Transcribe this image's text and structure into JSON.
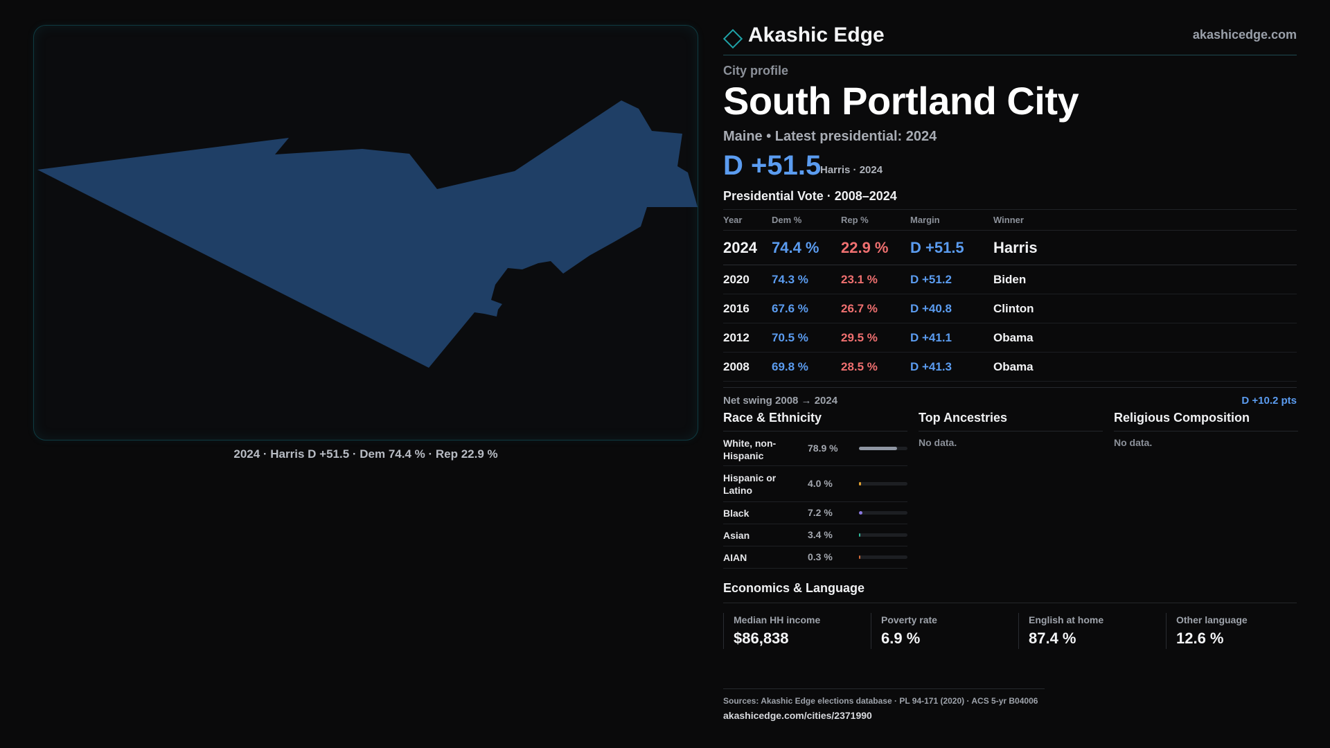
{
  "brand": {
    "name": "Akashic Edge",
    "url": "akashicedge.com",
    "accent": "#1fa3a8"
  },
  "map": {
    "fill_color": "#1f3f66",
    "caption": "2024 · Harris D +51.5 · Dem 74.4 % · Rep 22.9 %"
  },
  "profile": {
    "kicker": "City profile",
    "title": "South Portland City",
    "subtitle": "Maine • Latest presidential: 2024",
    "headline_margin": "D +51.5",
    "headline_note": "Harris · 2024"
  },
  "presidential": {
    "section_title": "Presidential Vote · 2008–2024",
    "headers": [
      "Year",
      "Dem %",
      "Rep %",
      "Margin",
      "Winner"
    ],
    "rows": [
      {
        "year": "2024",
        "dem": "74.4 %",
        "rep": "22.9 %",
        "margin": "D +51.5",
        "winner": "Harris"
      },
      {
        "year": "2020",
        "dem": "74.3 %",
        "rep": "23.1 %",
        "margin": "D +51.2",
        "winner": "Biden"
      },
      {
        "year": "2016",
        "dem": "67.6 %",
        "rep": "26.7 %",
        "margin": "D +40.8",
        "winner": "Clinton"
      },
      {
        "year": "2012",
        "dem": "70.5 %",
        "rep": "29.5 %",
        "margin": "D +41.1",
        "winner": "Obama"
      },
      {
        "year": "2008",
        "dem": "69.8 %",
        "rep": "28.5 %",
        "margin": "D +41.3",
        "winner": "Obama"
      }
    ],
    "swing_label": "Net swing 2008 → 2024",
    "swing_value": "D +10.2 pts"
  },
  "race": {
    "title": "Race & Ethnicity",
    "rows": [
      {
        "name": "White, non-Hispanic",
        "pct_label": "78.9 %",
        "pct": 78.9,
        "color": "#8f96a3"
      },
      {
        "name": "Hispanic or Latino",
        "pct_label": "4.0 %",
        "pct": 4.0,
        "color": "#e0a030"
      },
      {
        "name": "Black",
        "pct_label": "7.2 %",
        "pct": 7.2,
        "color": "#8a78e0"
      },
      {
        "name": "Asian",
        "pct_label": "3.4 %",
        "pct": 3.4,
        "color": "#2fb89a"
      },
      {
        "name": "AIAN",
        "pct_label": "0.3 %",
        "pct": 0.3,
        "color": "#d06a3a"
      }
    ]
  },
  "ancestries": {
    "title": "Top Ancestries",
    "empty": "No data."
  },
  "religion": {
    "title": "Religious Composition",
    "empty": "No data."
  },
  "economics": {
    "title": "Economics & Language",
    "cells": [
      {
        "label": "Median HH income",
        "value": "$86,838"
      },
      {
        "label": "Poverty rate",
        "value": "6.9 %"
      },
      {
        "label": "English at home",
        "value": "87.4 %"
      },
      {
        "label": "Other language",
        "value": "12.6 %"
      }
    ]
  },
  "footer": {
    "sources": "Sources: Akashic Edge elections database · PL 94-171 (2020) · ACS 5-yr B04006",
    "url": "akashicedge.com/cities/2371990"
  }
}
